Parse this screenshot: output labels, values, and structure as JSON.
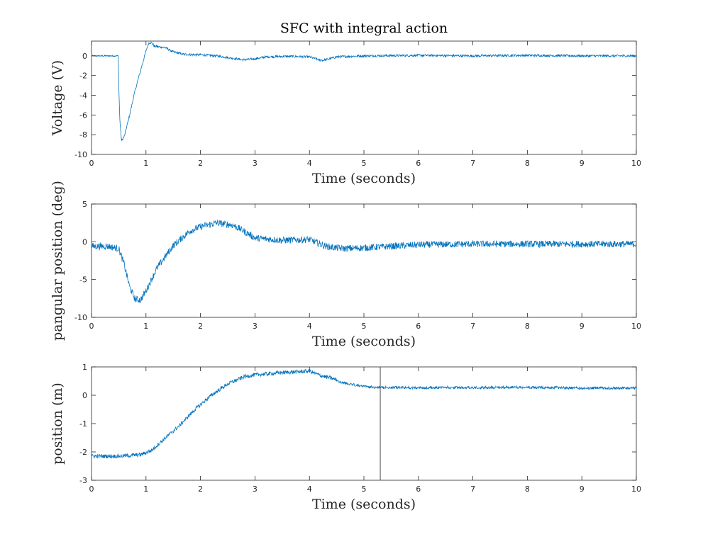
{
  "figure": {
    "title": "SFC with integral action",
    "line_color": "#0072BD",
    "axes_color": "#262626",
    "cursor_color": "#3a3a3a"
  },
  "chart_data": [
    {
      "type": "line",
      "title": "SFC with integral action",
      "xlabel": "Time (seconds)",
      "ylabel": "Voltage (V)",
      "xlim": [
        0,
        10
      ],
      "ylim": [
        -10,
        1.5
      ],
      "xticks": [
        "0",
        "1",
        "2",
        "3",
        "4",
        "5",
        "6",
        "7",
        "8",
        "9",
        "10"
      ],
      "yticks": [
        "0",
        "-2",
        "-4",
        "-6",
        "-8",
        "-10"
      ],
      "ytick_values": [
        0,
        -2,
        -4,
        -6,
        -8,
        -10
      ],
      "noise": 0.12,
      "series": [
        {
          "x": [
            0,
            0.49,
            0.5,
            0.52,
            0.55,
            0.6,
            0.7,
            0.8,
            0.9,
            1.0,
            1.05,
            1.1,
            1.15,
            1.25,
            1.35,
            1.5,
            1.7,
            2.0,
            2.3,
            2.6,
            2.8,
            3.0,
            3.2,
            3.6,
            4.0,
            4.2,
            4.3,
            4.5,
            5.0,
            6.0,
            7.0,
            8.0,
            9.0,
            10.0
          ],
          "values": [
            0,
            0,
            -3.0,
            -6.5,
            -8.6,
            -8.2,
            -6.0,
            -3.5,
            -1.5,
            0.5,
            1.3,
            1.35,
            1.0,
            0.9,
            0.85,
            0.4,
            0.15,
            0.1,
            0.0,
            -0.25,
            -0.4,
            -0.3,
            -0.1,
            -0.05,
            -0.1,
            -0.45,
            -0.4,
            -0.1,
            0.0,
            0.05,
            0.0,
            0.05,
            0.0,
            0.0
          ]
        }
      ]
    },
    {
      "type": "line",
      "xlabel": "Time (seconds)",
      "ylabel": "pangular position (deg)",
      "xlim": [
        0,
        10
      ],
      "ylim": [
        -10,
        5
      ],
      "xticks": [
        "0",
        "1",
        "2",
        "3",
        "4",
        "5",
        "6",
        "7",
        "8",
        "9",
        "10"
      ],
      "yticks": [
        "5",
        "0",
        "-5",
        "-10"
      ],
      "ytick_values": [
        5,
        0,
        -5,
        -10
      ],
      "noise": 0.45,
      "series": [
        {
          "x": [
            0,
            0.3,
            0.5,
            0.6,
            0.7,
            0.8,
            0.9,
            1.0,
            1.2,
            1.5,
            1.8,
            2.0,
            2.3,
            2.6,
            2.8,
            3.0,
            3.5,
            4.0,
            4.3,
            4.6,
            5.0,
            6.0,
            7.0,
            8.0,
            9.0,
            10.0
          ],
          "values": [
            -0.6,
            -0.6,
            -0.9,
            -3.0,
            -6.0,
            -7.6,
            -7.7,
            -6.5,
            -3.5,
            -0.5,
            1.4,
            2.0,
            2.5,
            2.2,
            1.4,
            0.5,
            0.2,
            0.3,
            -0.6,
            -0.9,
            -0.8,
            -0.4,
            -0.3,
            -0.3,
            -0.3,
            -0.3
          ]
        }
      ]
    },
    {
      "type": "line",
      "xlabel": "Time (seconds)",
      "ylabel": "position (m)",
      "xlim": [
        0,
        10
      ],
      "ylim": [
        -3,
        1
      ],
      "xticks": [
        "0",
        "1",
        "2",
        "3",
        "4",
        "5",
        "6",
        "7",
        "8",
        "9",
        "10"
      ],
      "yticks": [
        "1",
        "0",
        "-1",
        "-2",
        "-3"
      ],
      "ytick_values": [
        1,
        0,
        -1,
        -2,
        -3
      ],
      "noise": 0.07,
      "cursor_x": 5.3,
      "series": [
        {
          "x": [
            0,
            0.5,
            0.9,
            1.1,
            1.3,
            1.6,
            1.9,
            2.2,
            2.5,
            2.8,
            3.0,
            3.5,
            4.0,
            4.2,
            4.5,
            4.8,
            5.2,
            6.0,
            7.0,
            8.0,
            9.0,
            10.0
          ],
          "values": [
            -2.15,
            -2.15,
            -2.1,
            -1.95,
            -1.6,
            -1.1,
            -0.5,
            0.0,
            0.4,
            0.65,
            0.72,
            0.8,
            0.85,
            0.7,
            0.55,
            0.42,
            0.32,
            0.32,
            0.32,
            0.33,
            0.3,
            0.3
          ]
        }
      ]
    }
  ]
}
